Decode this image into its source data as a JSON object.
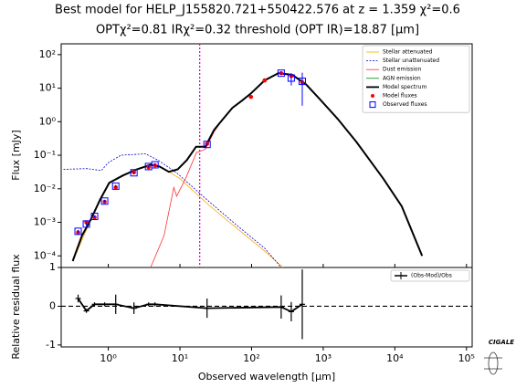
{
  "chart_data": [
    {
      "type": "line",
      "title": "Best model for HELP_J155820.721+550422.576 at z = 1.359 χ²=0.6",
      "subtitle": "OPTχ²=0.81 IRχ²=0.32 threshold (OPT IR)=18.87  [μm]",
      "ylabel": "Flux [mJy]",
      "xlim": [
        0.22,
        120000
      ],
      "ylim": [
        4.5e-05,
        210
      ],
      "log_x": true,
      "log_y": true,
      "yticks": [
        {
          "value": 0.0001,
          "label": "10⁻⁴"
        },
        {
          "value": 0.001,
          "label": "10⁻³"
        },
        {
          "value": 0.01,
          "label": "10⁻²"
        },
        {
          "value": 0.1,
          "label": "10⁻¹"
        },
        {
          "value": 1,
          "label": "10⁰"
        },
        {
          "value": 10,
          "label": "10¹"
        },
        {
          "value": 100,
          "label": "10²"
        }
      ],
      "threshold": 18.87,
      "threshold_color": "#e000e0",
      "legend": "upper right",
      "series": [
        {
          "name": "Stellar attenuated",
          "color": "#ffa500",
          "kind": "line",
          "x": [
            0.32,
            0.57,
            1.03,
            2.5,
            3.9,
            5.2,
            7,
            10,
            26,
            63,
            152,
            275
          ],
          "values": [
            7e-05,
            0.0012,
            0.015,
            0.038,
            0.052,
            0.046,
            0.032,
            0.02,
            0.0031,
            0.00065,
            0.00014,
            4.5e-05
          ]
        },
        {
          "name": "Stellar unattenuated",
          "color": "#0000cd",
          "kind": "line",
          "linestyle": "dashed",
          "x": [
            0.237,
            0.5,
            0.8,
            1.0,
            1.5,
            3.3,
            5,
            9,
            26,
            63,
            152,
            260
          ],
          "values": [
            0.038,
            0.04,
            0.035,
            0.06,
            0.1,
            0.11,
            0.07,
            0.03,
            0.004,
            0.0008,
            0.00017,
            4.5e-05
          ]
        },
        {
          "name": "Dust emission",
          "color": "#ff3030",
          "kind": "line",
          "x": [
            3.9,
            6,
            8.2,
            9,
            12,
            17,
            22.6,
            30,
            40,
            54,
            73,
            98,
            152,
            237,
            370,
            575,
            890,
            1600,
            2900,
            6900,
            12500,
            24000
          ],
          "values": [
            4.5e-05,
            0.0004,
            0.011,
            0.006,
            0.02,
            0.12,
            0.15,
            0.5,
            1.2,
            2.6,
            4.2,
            7,
            17,
            28,
            25,
            13,
            4.8,
            1.2,
            0.25,
            0.02,
            0.003,
            0.0001
          ]
        },
        {
          "name": "AGN emission",
          "color": "#008000",
          "kind": "line"
        },
        {
          "name": "Model spectrum",
          "color": "#000000",
          "kind": "line",
          "width": 2,
          "x": [
            0.318,
            0.43,
            0.57,
            0.77,
            1.03,
            1.6,
            2.5,
            3.9,
            5.2,
            7,
            9.3,
            12.5,
            16.8,
            22.6,
            30,
            40,
            54,
            73,
            98,
            152,
            237,
            370,
            575,
            890,
            1600,
            2900,
            6900,
            12500,
            24000
          ],
          "values": [
            7e-05,
            0.0004,
            0.0012,
            0.0048,
            0.015,
            0.025,
            0.038,
            0.052,
            0.046,
            0.032,
            0.038,
            0.072,
            0.18,
            0.18,
            0.57,
            1.2,
            2.6,
            4.2,
            7,
            17,
            28,
            25,
            13,
            4.8,
            1.2,
            0.25,
            0.02,
            0.003,
            0.0001
          ]
        },
        {
          "name": "Model fluxes",
          "color": "#ff0000",
          "kind": "dot",
          "x": [
            0.379,
            0.494,
            0.643,
            0.889,
            1.27,
            2.28,
            3.65,
            4.48,
            23.9,
            98,
            152,
            259,
            358,
            510
          ],
          "values": [
            0.0005,
            0.001,
            0.0014,
            0.0041,
            0.011,
            0.031,
            0.044,
            0.05,
            0.22,
            5.5,
            17,
            28,
            23,
            15
          ]
        },
        {
          "name": "Observed fluxes",
          "color": "#0000ff",
          "kind": "square",
          "x": [
            0.379,
            0.494,
            0.643,
            0.889,
            1.27,
            2.28,
            3.65,
            4.48,
            23.9,
            259,
            358,
            510
          ],
          "values": [
            0.00054,
            0.00089,
            0.0015,
            0.0043,
            0.012,
            0.03,
            0.046,
            0.052,
            0.21,
            28,
            20,
            16
          ],
          "errors": [
            5e-05,
            8e-05,
            0.0001,
            0.0003,
            0.001,
            0.002,
            0.003,
            0.003,
            0.02,
            3,
            8,
            13
          ]
        }
      ]
    },
    {
      "type": "line",
      "xlabel": "Observed wavelength [μm]",
      "ylabel": "Relative residual flux",
      "xlim": [
        0.22,
        120000
      ],
      "ylim": [
        -1.05,
        1.0
      ],
      "log_x": true,
      "xticks": [
        {
          "value": 1,
          "label": "10⁰"
        },
        {
          "value": 10,
          "label": "10¹"
        },
        {
          "value": 100,
          "label": "10²"
        },
        {
          "value": 1000,
          "label": "10³"
        },
        {
          "value": 10000,
          "label": "10⁴"
        },
        {
          "value": 100000,
          "label": "10⁵"
        }
      ],
      "yticks": [
        -1,
        0,
        1
      ],
      "zero_line": true,
      "legend": "upper right",
      "series": [
        {
          "name": "(Obs-Mod)/Obs",
          "color": "#000000",
          "x": [
            0.379,
            0.494,
            0.643,
            0.889,
            1.27,
            2.28,
            3.65,
            4.48,
            23.9,
            259,
            358,
            510
          ],
          "values": [
            0.2,
            -0.12,
            0.05,
            0.05,
            0.05,
            -0.05,
            0.05,
            0.05,
            -0.05,
            -0.02,
            -0.14,
            0.05
          ],
          "errors": [
            0.1,
            0.05,
            0.05,
            0.05,
            0.25,
            0.15,
            0.05,
            0.05,
            0.25,
            0.3,
            0.25,
            0.9
          ]
        }
      ]
    }
  ],
  "logo_text": "CIGALE"
}
